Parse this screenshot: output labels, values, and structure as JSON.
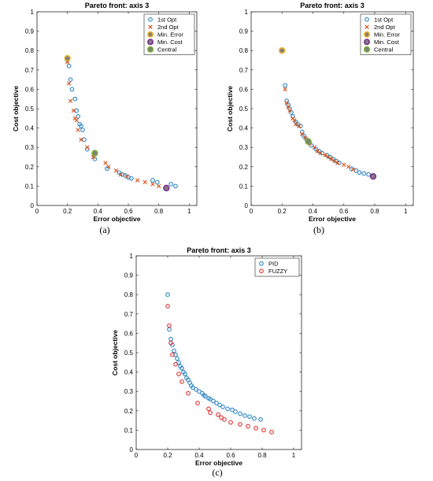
{
  "panels": [
    {
      "caption": "(a)",
      "chart_data": {
        "type": "scatter",
        "title": "Pareto front: axis 3",
        "xlabel": "Error objective",
        "ylabel": "Cost objective",
        "xlim": [
          0,
          1.05
        ],
        "ylim": [
          0,
          1
        ],
        "xticks": [
          "0",
          "0.2",
          "0.4",
          "0.6",
          "0.8",
          "1"
        ],
        "yticks": [
          "0",
          "0.1",
          "0.2",
          "0.3",
          "0.4",
          "0.5",
          "0.6",
          "0.7",
          "0.8",
          "0.9",
          "1"
        ],
        "legend_position": "top-right",
        "series": [
          {
            "name": "1st Opt",
            "marker": "circle",
            "color": "#2e86c1",
            "size": "normal",
            "points": [
              [
                0.2,
                0.75
              ],
              [
                0.21,
                0.72
              ],
              [
                0.22,
                0.65
              ],
              [
                0.23,
                0.6
              ],
              [
                0.25,
                0.55
              ],
              [
                0.26,
                0.49
              ],
              [
                0.27,
                0.46
              ],
              [
                0.28,
                0.42
              ],
              [
                0.29,
                0.41
              ],
              [
                0.3,
                0.39
              ],
              [
                0.31,
                0.34
              ],
              [
                0.33,
                0.29
              ],
              [
                0.38,
                0.24
              ],
              [
                0.46,
                0.19
              ],
              [
                0.54,
                0.17
              ],
              [
                0.56,
                0.16
              ],
              [
                0.58,
                0.155
              ],
              [
                0.6,
                0.145
              ],
              [
                0.62,
                0.14
              ],
              [
                0.76,
                0.13
              ],
              [
                0.79,
                0.12
              ],
              [
                0.88,
                0.11
              ],
              [
                0.91,
                0.1
              ]
            ]
          },
          {
            "name": "2nd Opt",
            "marker": "x",
            "color": "#d95319",
            "size": "normal",
            "points": [
              [
                0.2,
                0.74
              ],
              [
                0.21,
                0.63
              ],
              [
                0.22,
                0.54
              ],
              [
                0.24,
                0.49
              ],
              [
                0.25,
                0.45
              ],
              [
                0.26,
                0.44
              ],
              [
                0.27,
                0.39
              ],
              [
                0.29,
                0.34
              ],
              [
                0.33,
                0.3
              ],
              [
                0.37,
                0.25
              ],
              [
                0.45,
                0.22
              ],
              [
                0.47,
                0.2
              ],
              [
                0.52,
                0.18
              ],
              [
                0.55,
                0.16
              ],
              [
                0.59,
                0.15
              ],
              [
                0.66,
                0.13
              ],
              [
                0.71,
                0.12
              ],
              [
                0.76,
                0.11
              ],
              [
                0.8,
                0.1
              ]
            ]
          },
          {
            "name": "Min. Error",
            "marker": "circle",
            "color": "#edb120",
            "size": "big",
            "points": [
              [
                0.2,
                0.76
              ]
            ]
          },
          {
            "name": "Min. Cost",
            "marker": "circle",
            "color": "#7e2f8e",
            "size": "big",
            "points": [
              [
                0.85,
                0.09
              ]
            ]
          },
          {
            "name": "Central",
            "marker": "circle",
            "color": "#77ac30",
            "size": "big",
            "points": [
              [
                0.38,
                0.27
              ]
            ]
          }
        ]
      }
    },
    {
      "caption": "(b)",
      "chart_data": {
        "type": "scatter",
        "title": "Pareto front: axis 3",
        "xlabel": "Error objective",
        "ylabel": "Cost objective",
        "xlim": [
          0,
          1.05
        ],
        "ylim": [
          0,
          1
        ],
        "xticks": [
          "0",
          "0.2",
          "0.4",
          "0.6",
          "0.8",
          "1"
        ],
        "yticks": [
          "0",
          "0.1",
          "0.2",
          "0.3",
          "0.4",
          "0.5",
          "0.6",
          "0.7",
          "0.8",
          "0.9",
          "1"
        ],
        "legend_position": "top-right",
        "series": [
          {
            "name": "1st Opt",
            "marker": "circle",
            "color": "#2e86c1",
            "size": "normal",
            "points": [
              [
                0.22,
                0.62
              ],
              [
                0.23,
                0.54
              ],
              [
                0.24,
                0.52
              ],
              [
                0.25,
                0.5
              ],
              [
                0.26,
                0.48
              ],
              [
                0.27,
                0.46
              ],
              [
                0.29,
                0.43
              ],
              [
                0.3,
                0.42
              ],
              [
                0.32,
                0.41
              ],
              [
                0.33,
                0.38
              ],
              [
                0.34,
                0.36
              ],
              [
                0.36,
                0.34
              ],
              [
                0.39,
                0.31
              ],
              [
                0.42,
                0.29
              ],
              [
                0.44,
                0.28
              ],
              [
                0.46,
                0.27
              ],
              [
                0.49,
                0.26
              ],
              [
                0.51,
                0.25
              ],
              [
                0.53,
                0.24
              ],
              [
                0.55,
                0.23
              ],
              [
                0.57,
                0.22
              ],
              [
                0.65,
                0.19
              ],
              [
                0.68,
                0.18
              ],
              [
                0.7,
                0.17
              ],
              [
                0.73,
                0.165
              ],
              [
                0.76,
                0.16
              ]
            ]
          },
          {
            "name": "2nd Opt",
            "marker": "x",
            "color": "#d95319",
            "size": "normal",
            "points": [
              [
                0.22,
                0.6
              ],
              [
                0.23,
                0.53
              ],
              [
                0.24,
                0.51
              ],
              [
                0.25,
                0.49
              ],
              [
                0.27,
                0.45
              ],
              [
                0.28,
                0.44
              ],
              [
                0.29,
                0.42
              ],
              [
                0.31,
                0.41
              ],
              [
                0.33,
                0.37
              ],
              [
                0.35,
                0.35
              ],
              [
                0.38,
                0.32
              ],
              [
                0.41,
                0.3
              ],
              [
                0.43,
                0.28
              ],
              [
                0.45,
                0.27
              ],
              [
                0.48,
                0.26
              ],
              [
                0.5,
                0.25
              ],
              [
                0.52,
                0.24
              ],
              [
                0.54,
                0.23
              ],
              [
                0.56,
                0.22
              ],
              [
                0.6,
                0.21
              ],
              [
                0.63,
                0.2
              ],
              [
                0.66,
                0.185
              ]
            ]
          },
          {
            "name": "Min. Error",
            "marker": "circle",
            "color": "#edb120",
            "size": "big",
            "points": [
              [
                0.2,
                0.8
              ]
            ]
          },
          {
            "name": "Min. Cost",
            "marker": "circle",
            "color": "#7e2f8e",
            "size": "big",
            "points": [
              [
                0.79,
                0.15
              ]
            ]
          },
          {
            "name": "Central",
            "marker": "circle",
            "color": "#77ac30",
            "size": "big",
            "points": [
              [
                0.37,
                0.33
              ]
            ]
          }
        ]
      }
    },
    {
      "caption": "(c)",
      "chart_data": {
        "type": "scatter",
        "title": "Pareto front: axis 3",
        "xlabel": "Error objective",
        "ylabel": "Cost objective",
        "xlim": [
          0,
          1.05
        ],
        "ylim": [
          0,
          1
        ],
        "xticks": [
          "0",
          "0.2",
          "0.4",
          "0.6",
          "0.8",
          "1"
        ],
        "yticks": [
          "0",
          "0.1",
          "0.2",
          "0.3",
          "0.4",
          "0.5",
          "0.6",
          "0.7",
          "0.8",
          "0.9",
          "1"
        ],
        "legend_position": "top-right",
        "series": [
          {
            "name": "PID",
            "marker": "circle",
            "color": "#2e86c1",
            "size": "normal",
            "points": [
              [
                0.2,
                0.8
              ],
              [
                0.21,
                0.62
              ],
              [
                0.22,
                0.57
              ],
              [
                0.23,
                0.54
              ],
              [
                0.24,
                0.51
              ],
              [
                0.25,
                0.49
              ],
              [
                0.26,
                0.47
              ],
              [
                0.27,
                0.45
              ],
              [
                0.28,
                0.43
              ],
              [
                0.29,
                0.42
              ],
              [
                0.3,
                0.4
              ],
              [
                0.31,
                0.39
              ],
              [
                0.32,
                0.37
              ],
              [
                0.33,
                0.36
              ],
              [
                0.34,
                0.345
              ],
              [
                0.35,
                0.33
              ],
              [
                0.36,
                0.32
              ],
              [
                0.38,
                0.31
              ],
              [
                0.4,
                0.3
              ],
              [
                0.42,
                0.29
              ],
              [
                0.43,
                0.28
              ],
              [
                0.44,
                0.275
              ],
              [
                0.46,
                0.265
              ],
              [
                0.47,
                0.26
              ],
              [
                0.49,
                0.25
              ],
              [
                0.51,
                0.24
              ],
              [
                0.53,
                0.23
              ],
              [
                0.55,
                0.22
              ],
              [
                0.58,
                0.21
              ],
              [
                0.61,
                0.205
              ],
              [
                0.63,
                0.195
              ],
              [
                0.66,
                0.185
              ],
              [
                0.69,
                0.175
              ],
              [
                0.72,
                0.17
              ],
              [
                0.75,
                0.16
              ],
              [
                0.79,
                0.155
              ]
            ]
          },
          {
            "name": "FUZZY",
            "marker": "circle",
            "color": "#e03131",
            "size": "normal",
            "points": [
              [
                0.2,
                0.74
              ],
              [
                0.21,
                0.64
              ],
              [
                0.22,
                0.55
              ],
              [
                0.23,
                0.49
              ],
              [
                0.25,
                0.44
              ],
              [
                0.27,
                0.39
              ],
              [
                0.29,
                0.35
              ],
              [
                0.33,
                0.29
              ],
              [
                0.39,
                0.24
              ],
              [
                0.46,
                0.21
              ],
              [
                0.47,
                0.19
              ],
              [
                0.52,
                0.18
              ],
              [
                0.54,
                0.165
              ],
              [
                0.56,
                0.155
              ],
              [
                0.6,
                0.14
              ],
              [
                0.66,
                0.13
              ],
              [
                0.71,
                0.12
              ],
              [
                0.76,
                0.11
              ],
              [
                0.81,
                0.1
              ],
              [
                0.86,
                0.09
              ]
            ]
          }
        ]
      }
    }
  ]
}
